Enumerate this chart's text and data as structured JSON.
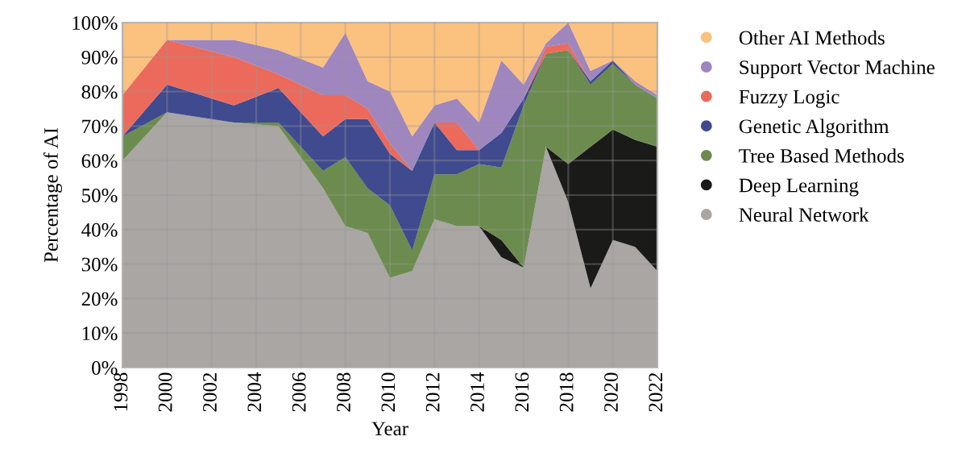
{
  "chart_data": {
    "type": "area",
    "stacked": true,
    "xlabel": "Year",
    "ylabel": "Percentage of AI",
    "x": [
      1998,
      2000,
      2003,
      2005,
      2007,
      2008,
      2009,
      2010,
      2011,
      2012,
      2013,
      2014,
      2015,
      2016,
      2017,
      2018,
      2019,
      2020,
      2021,
      2022
    ],
    "series": [
      {
        "name": "Neural Network",
        "color": "#aaa6a3",
        "values": [
          60,
          74,
          71,
          70,
          52,
          41,
          39,
          26,
          28,
          43,
          41,
          41,
          32,
          29,
          64,
          48,
          23,
          37,
          35,
          28
        ]
      },
      {
        "name": "Deep Learning",
        "color": "#1a1a18",
        "values": [
          0,
          0,
          0,
          0,
          0,
          0,
          0,
          0,
          0,
          0,
          0,
          0,
          5,
          0,
          0,
          11,
          41,
          32,
          31,
          36
        ]
      },
      {
        "name": "Tree Based Methods",
        "color": "#6b8c4e",
        "values": [
          7,
          0,
          0,
          1,
          5,
          20,
          13,
          21,
          6,
          13,
          15,
          18,
          21,
          47,
          27,
          33,
          18,
          19,
          16,
          14
        ]
      },
      {
        "name": "Genetic Algorithm",
        "color": "#3f4a8f",
        "values": [
          0,
          8,
          5,
          10,
          10,
          11,
          20,
          15,
          23,
          15,
          7,
          4,
          10,
          2,
          0,
          0,
          1,
          1,
          0,
          0
        ]
      },
      {
        "name": "Fuzzy Logic",
        "color": "#ec6a5c",
        "values": [
          12,
          13,
          14,
          4,
          12,
          7,
          3,
          3,
          0,
          0,
          8,
          0,
          0,
          0,
          2,
          2,
          0,
          0,
          0,
          0
        ]
      },
      {
        "name": "Support Vector Machine",
        "color": "#9f86bf",
        "values": [
          0,
          0,
          5,
          7,
          8,
          18,
          8,
          15,
          10,
          5,
          7,
          8,
          21,
          4,
          1,
          6,
          3,
          0,
          1,
          1
        ]
      },
      {
        "name": "Other AI Methods",
        "color": "#fbc17f",
        "values": [
          21,
          5,
          5,
          8,
          13,
          3,
          17,
          20,
          33,
          24,
          22,
          29,
          11,
          18,
          6,
          0,
          14,
          11,
          17,
          21
        ]
      }
    ],
    "xlim": [
      1998,
      2022
    ],
    "xticks": [
      1998,
      2000,
      2002,
      2004,
      2006,
      2008,
      2010,
      2012,
      2014,
      2016,
      2018,
      2020,
      2022
    ],
    "ylim": [
      0,
      100
    ],
    "yticks": [
      {
        "value": 0,
        "label": "0%"
      },
      {
        "value": 10,
        "label": "10%"
      },
      {
        "value": 20,
        "label": "20%"
      },
      {
        "value": 30,
        "label": "30%"
      },
      {
        "value": 40,
        "label": "40%"
      },
      {
        "value": 50,
        "label": "50%"
      },
      {
        "value": 60,
        "label": "60%"
      },
      {
        "value": 70,
        "label": "70%"
      },
      {
        "value": 80,
        "label": "80%"
      },
      {
        "value": 90,
        "label": "90%"
      },
      {
        "value": 100,
        "label": "100%"
      }
    ],
    "grid": true,
    "legend": "right"
  }
}
